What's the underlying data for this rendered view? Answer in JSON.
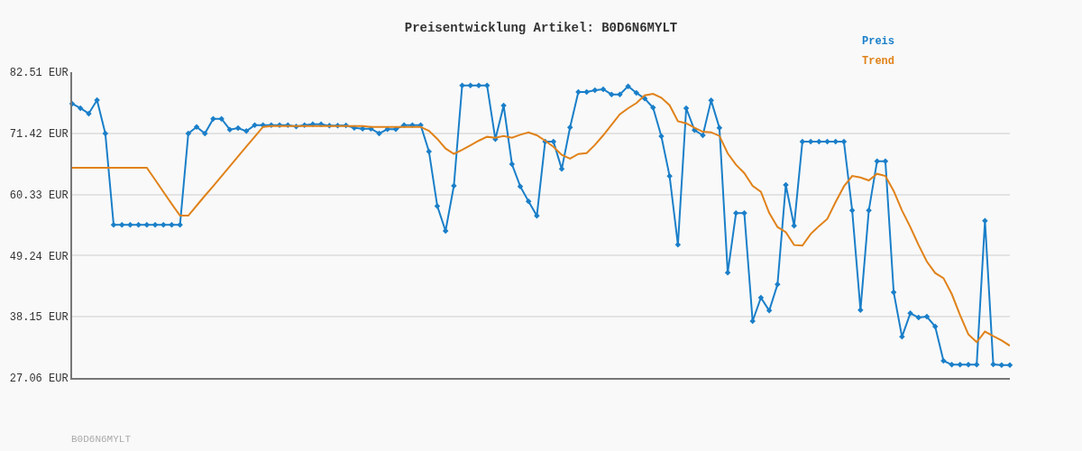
{
  "chart_data": {
    "type": "line",
    "title": "Preisentwicklung Artikel: B0D6N6MYLT",
    "categories": [
      null,
      null,
      null,
      null,
      null,
      null,
      null,
      null,
      null,
      null,
      null,
      null,
      null,
      null,
      null,
      null,
      null,
      null,
      null,
      null,
      null,
      null,
      null,
      null,
      null,
      null,
      null,
      null,
      null,
      null,
      null,
      null,
      null,
      null,
      null,
      null,
      null,
      null,
      null,
      null,
      null,
      null,
      null,
      null,
      null,
      null,
      null,
      null,
      null,
      null,
      null,
      null,
      null,
      null,
      null,
      null,
      null,
      null,
      null,
      null,
      null,
      null,
      null,
      null,
      null,
      null,
      null,
      null,
      null,
      null,
      null,
      null,
      null,
      null,
      null,
      null,
      null,
      null,
      null,
      null,
      null,
      null,
      null,
      null,
      null,
      null,
      null,
      null,
      null,
      null,
      null,
      null,
      null,
      null,
      null,
      null,
      null,
      null,
      null,
      null,
      null,
      null,
      null,
      null,
      null,
      null,
      null,
      null,
      null,
      null,
      null,
      null,
      null,
      null
    ],
    "series": [
      {
        "name": "Preis",
        "color": "#1a7fc9",
        "marker": "diamond",
        "values": [
          76.8,
          75.97,
          75.0,
          77.44,
          71.4,
          54.81,
          54.81,
          54.81,
          54.81,
          54.81,
          54.81,
          54.81,
          54.81,
          54.81,
          71.4,
          72.59,
          71.4,
          74.06,
          74.06,
          72.1,
          72.37,
          71.82,
          72.9,
          72.9,
          72.9,
          72.9,
          72.9,
          72.64,
          72.9,
          73.08,
          73.08,
          72.8,
          72.8,
          72.86,
          72.42,
          72.26,
          72.26,
          71.4,
          72.15,
          72.15,
          72.91,
          72.91,
          72.91,
          68.12,
          58.24,
          53.72,
          61.9,
          80.11,
          80.11,
          80.11,
          80.11,
          70.35,
          76.46,
          65.83,
          61.79,
          59.07,
          56.45,
          69.92,
          69.92,
          64.95,
          72.48,
          78.91,
          78.91,
          79.24,
          79.4,
          78.48,
          78.48,
          79.95,
          78.75,
          77.71,
          76.08,
          70.9,
          63.65,
          51.21,
          75.97,
          71.99,
          71.06,
          77.38,
          72.42,
          46.15,
          56.94,
          56.94,
          37.36,
          41.62,
          39.27,
          44.02,
          62.06,
          54.65,
          69.92,
          69.92,
          69.92,
          69.92,
          69.92,
          69.92,
          57.43,
          39.38,
          57.43,
          66.37,
          66.37,
          42.6,
          34.53,
          38.78,
          38.02,
          38.18,
          36.38,
          30.17,
          29.46,
          29.46,
          29.46,
          29.46,
          55.58,
          29.51,
          29.4,
          29.4
        ]
      },
      {
        "name": "Trend",
        "color": "#e0821a",
        "marker": "none",
        "values": [
          65.17,
          65.17,
          65.17,
          65.17,
          65.17,
          65.17,
          65.17,
          65.17,
          65.17,
          65.17,
          63.0,
          60.8,
          58.6,
          56.5,
          56.5,
          58.3,
          60.1,
          61.85,
          63.65,
          65.45,
          67.24,
          69.04,
          70.79,
          72.59,
          72.75,
          72.75,
          72.75,
          72.75,
          72.75,
          72.75,
          72.75,
          72.75,
          72.75,
          72.75,
          72.75,
          72.75,
          72.59,
          72.59,
          72.59,
          72.59,
          72.59,
          72.59,
          72.59,
          71.87,
          70.41,
          68.66,
          67.68,
          68.44,
          69.26,
          70.08,
          70.79,
          70.62,
          70.95,
          70.62,
          71.17,
          71.6,
          71.06,
          70.08,
          68.99,
          67.52,
          66.81,
          67.68,
          67.84,
          69.32,
          71.06,
          72.97,
          74.88,
          75.97,
          76.9,
          78.31,
          78.58,
          77.88,
          76.51,
          73.62,
          73.24,
          72.42,
          71.71,
          71.6,
          70.95,
          67.79,
          65.72,
          64.19,
          61.9,
          60.81,
          56.99,
          54.43,
          53.5,
          51.16,
          51.05,
          53.18,
          54.6,
          55.9,
          58.96,
          61.79,
          63.69,
          63.42,
          62.88,
          64.08,
          63.69,
          60.97,
          57.43,
          54.43,
          51.16,
          48.16,
          46.09,
          45.16,
          42.27,
          38.46,
          34.97,
          33.55,
          35.46,
          34.64,
          33.88,
          32.9
        ]
      }
    ],
    "ylim": [
      27.06,
      82.51
    ],
    "yticks": [
      {
        "value": 27.06,
        "label": "27.06 EUR"
      },
      {
        "value": 38.15,
        "label": "38.15 EUR"
      },
      {
        "value": 49.24,
        "label": "49.24 EUR"
      },
      {
        "value": 60.33,
        "label": "60.33 EUR"
      },
      {
        "value": 71.42,
        "label": "71.42 EUR"
      },
      {
        "value": 82.51,
        "label": "82.51 EUR"
      }
    ],
    "tick_labels": "y",
    "grid": "y",
    "legend": "top right",
    "line_style": "solid",
    "annotations": [
      "B0D6N6MYLT"
    ]
  }
}
